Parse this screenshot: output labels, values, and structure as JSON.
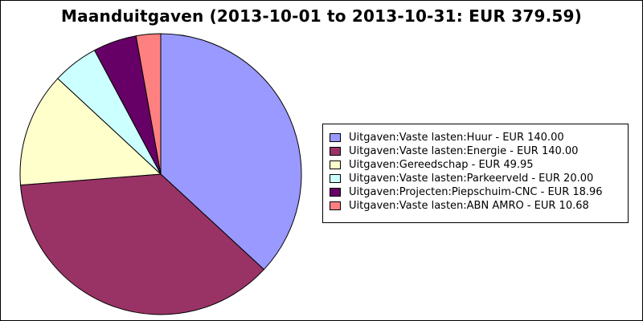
{
  "chart_data": {
    "type": "pie",
    "title": "Maanduitgaven (2013-10-01 to 2013-10-31: EUR 379.59)",
    "legend_position": "right",
    "slices": [
      {
        "label": "Uitgaven:Vaste lasten:Huur - EUR 140.00",
        "value": 140.0,
        "color": "#9999ff"
      },
      {
        "label": "Uitgaven:Vaste lasten:Energie - EUR 140.00",
        "value": 140.0,
        "color": "#993366"
      },
      {
        "label": "Uitgaven:Gereedschap - EUR 49.95",
        "value": 49.95,
        "color": "#ffffcc"
      },
      {
        "label": "Uitgaven:Vaste lasten:Parkeerveld - EUR 20.00",
        "value": 20.0,
        "color": "#ccffff"
      },
      {
        "label": "Uitgaven:Projecten:Piepschuim-CNC - EUR 18.96",
        "value": 18.96,
        "color": "#660066"
      },
      {
        "label": "Uitgaven:Vaste lasten:ABN AMRO - EUR 10.68",
        "value": 10.68,
        "color": "#ff8080"
      }
    ]
  }
}
